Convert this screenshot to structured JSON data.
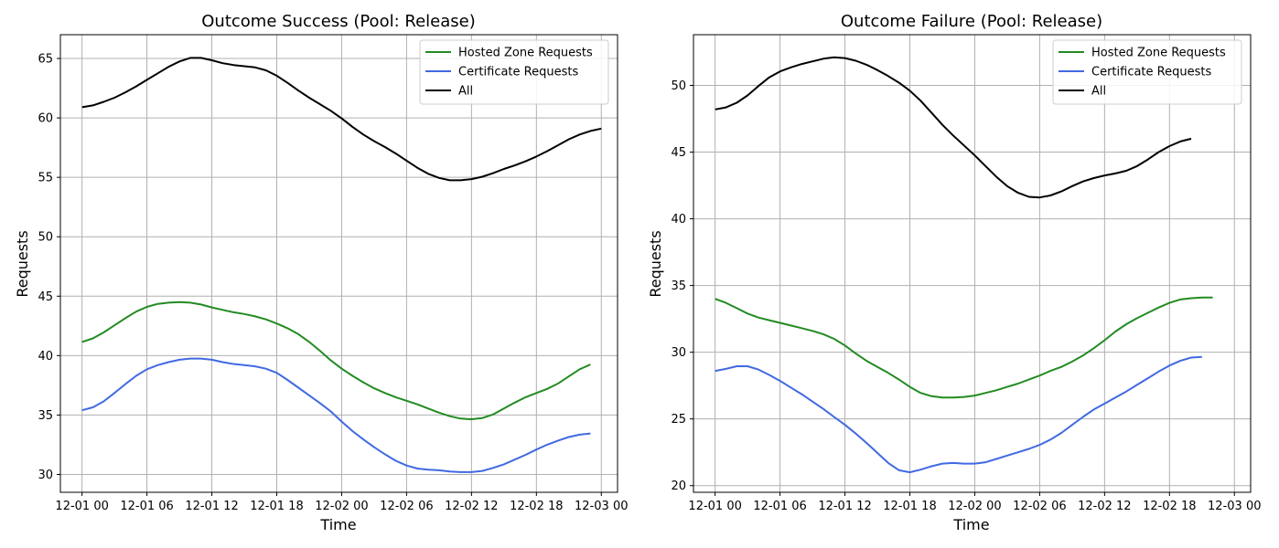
{
  "chart_data": [
    {
      "type": "line",
      "title": "Outcome Success (Pool: Release)",
      "xlabel": "Time",
      "ylabel": "Requests",
      "x_start": "12-01 00",
      "x_step_hours": 1,
      "xlim_hours": [
        -2.0,
        49.5
      ],
      "ylim": [
        28.5,
        67.0
      ],
      "xticks": [
        {
          "hour": 0,
          "label": "12-01 00"
        },
        {
          "hour": 6,
          "label": "12-01 06"
        },
        {
          "hour": 12,
          "label": "12-01 12"
        },
        {
          "hour": 18,
          "label": "12-01 18"
        },
        {
          "hour": 24,
          "label": "12-02 00"
        },
        {
          "hour": 30,
          "label": "12-02 06"
        },
        {
          "hour": 36,
          "label": "12-02 12"
        },
        {
          "hour": 42,
          "label": "12-02 18"
        },
        {
          "hour": 48,
          "label": "12-03 00"
        }
      ],
      "yticks": [
        30,
        35,
        40,
        45,
        50,
        55,
        60,
        65
      ],
      "grid": true,
      "legend_position": "top-right",
      "series": [
        {
          "name": "Hosted Zone Requests",
          "color": "#228b22",
          "values": [
            41.15,
            41.45,
            41.95,
            42.55,
            43.15,
            43.7,
            44.1,
            44.35,
            44.45,
            44.5,
            44.45,
            44.3,
            44.05,
            43.85,
            43.65,
            43.5,
            43.3,
            43.05,
            42.7,
            42.3,
            41.8,
            41.15,
            40.4,
            39.6,
            38.9,
            38.3,
            37.75,
            37.25,
            36.85,
            36.5,
            36.2,
            35.9,
            35.55,
            35.2,
            34.9,
            34.7,
            34.65,
            34.75,
            35.05,
            35.55,
            36.05,
            36.5,
            36.85,
            37.2,
            37.65,
            38.25,
            38.85,
            39.25
          ]
        },
        {
          "name": "Certificate Requests",
          "color": "#4169e1",
          "values": [
            35.4,
            35.65,
            36.15,
            36.85,
            37.6,
            38.3,
            38.85,
            39.2,
            39.45,
            39.65,
            39.75,
            39.75,
            39.65,
            39.45,
            39.3,
            39.2,
            39.1,
            38.9,
            38.55,
            37.95,
            37.3,
            36.65,
            36.0,
            35.3,
            34.45,
            33.65,
            32.95,
            32.3,
            31.7,
            31.15,
            30.75,
            30.5,
            30.4,
            30.35,
            30.25,
            30.2,
            30.2,
            30.3,
            30.55,
            30.85,
            31.25,
            31.65,
            32.1,
            32.5,
            32.85,
            33.15,
            33.35,
            33.45
          ]
        },
        {
          "name": "All",
          "color": "#000000",
          "values": [
            60.9,
            61.05,
            61.35,
            61.7,
            62.15,
            62.65,
            63.2,
            63.75,
            64.3,
            64.75,
            65.05,
            65.05,
            64.85,
            64.6,
            64.45,
            64.35,
            64.25,
            64.0,
            63.55,
            62.95,
            62.3,
            61.7,
            61.15,
            60.6,
            59.95,
            59.25,
            58.6,
            58.05,
            57.55,
            57.0,
            56.4,
            55.8,
            55.3,
            54.95,
            54.75,
            54.75,
            54.85,
            55.05,
            55.35,
            55.7,
            56.0,
            56.35,
            56.75,
            57.2,
            57.7,
            58.2,
            58.6,
            58.9,
            59.1
          ]
        }
      ]
    },
    {
      "type": "line",
      "title": "Outcome Failure (Pool: Release)",
      "xlabel": "Time",
      "ylabel": "Requests",
      "x_start": "12-01 00",
      "x_step_hours": 1,
      "xlim_hours": [
        -2.0,
        49.5
      ],
      "ylim": [
        19.5,
        53.8
      ],
      "xticks": [
        {
          "hour": 0,
          "label": "12-01 00"
        },
        {
          "hour": 6,
          "label": "12-01 06"
        },
        {
          "hour": 12,
          "label": "12-01 12"
        },
        {
          "hour": 18,
          "label": "12-01 18"
        },
        {
          "hour": 24,
          "label": "12-02 00"
        },
        {
          "hour": 30,
          "label": "12-02 06"
        },
        {
          "hour": 36,
          "label": "12-02 12"
        },
        {
          "hour": 42,
          "label": "12-02 18"
        },
        {
          "hour": 48,
          "label": "12-03 00"
        }
      ],
      "yticks": [
        20,
        25,
        30,
        35,
        40,
        45,
        50
      ],
      "grid": true,
      "legend_position": "top-right",
      "series": [
        {
          "name": "Hosted Zone Requests",
          "color": "#228b22",
          "values": [
            34.0,
            33.7,
            33.3,
            32.9,
            32.6,
            32.4,
            32.2,
            32.0,
            31.8,
            31.6,
            31.35,
            31.0,
            30.5,
            29.9,
            29.35,
            28.9,
            28.45,
            27.95,
            27.4,
            26.95,
            26.7,
            26.6,
            26.6,
            26.65,
            26.75,
            26.95,
            27.15,
            27.4,
            27.65,
            27.95,
            28.25,
            28.6,
            28.9,
            29.3,
            29.75,
            30.3,
            30.9,
            31.55,
            32.1,
            32.55,
            32.95,
            33.35,
            33.7,
            33.95,
            34.05,
            34.1,
            34.1
          ]
        },
        {
          "name": "Certificate Requests",
          "color": "#4169e1",
          "values": [
            28.6,
            28.75,
            28.95,
            28.95,
            28.7,
            28.3,
            27.85,
            27.35,
            26.85,
            26.3,
            25.75,
            25.15,
            24.55,
            23.9,
            23.2,
            22.45,
            21.7,
            21.15,
            21.0,
            21.2,
            21.45,
            21.65,
            21.7,
            21.65,
            21.65,
            21.75,
            22.0,
            22.25,
            22.5,
            22.75,
            23.05,
            23.45,
            23.95,
            24.55,
            25.15,
            25.7,
            26.15,
            26.6,
            27.05,
            27.55,
            28.05,
            28.55,
            29.0,
            29.35,
            29.6,
            29.65
          ]
        },
        {
          "name": "All",
          "color": "#000000",
          "values": [
            48.2,
            48.35,
            48.7,
            49.25,
            49.95,
            50.6,
            51.05,
            51.35,
            51.6,
            51.8,
            52.0,
            52.1,
            52.05,
            51.85,
            51.55,
            51.15,
            50.7,
            50.2,
            49.6,
            48.85,
            47.95,
            47.05,
            46.25,
            45.5,
            44.75,
            43.95,
            43.15,
            42.45,
            41.95,
            41.65,
            41.6,
            41.75,
            42.05,
            42.45,
            42.8,
            43.05,
            43.25,
            43.4,
            43.6,
            43.95,
            44.45,
            45.0,
            45.45,
            45.8,
            46.0
          ]
        }
      ]
    }
  ]
}
